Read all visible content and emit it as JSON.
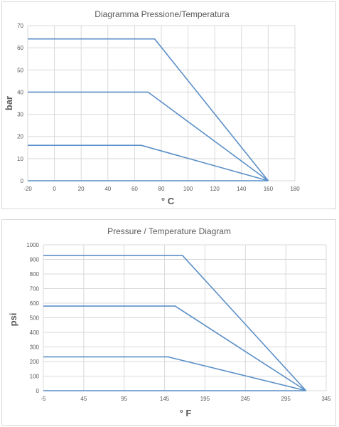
{
  "chart_data": [
    {
      "type": "line",
      "title": "Diagramma Pressione/Temperatura",
      "xlabel": "° C",
      "ylabel": "bar",
      "xlim": [
        -20,
        180
      ],
      "ylim": [
        0,
        70
      ],
      "xticks": [
        -20,
        0,
        20,
        40,
        60,
        80,
        100,
        120,
        140,
        160,
        180
      ],
      "yticks": [
        0,
        10,
        20,
        30,
        40,
        50,
        60,
        70
      ],
      "grid": true,
      "series": [
        {
          "x": [
            -20,
            75,
            160
          ],
          "y": [
            64,
            64,
            0
          ]
        },
        {
          "x": [
            -20,
            70,
            160
          ],
          "y": [
            40,
            40,
            0
          ]
        },
        {
          "x": [
            -20,
            65,
            160
          ],
          "y": [
            16,
            16,
            0
          ]
        },
        {
          "x": [
            -20,
            160
          ],
          "y": [
            0,
            0
          ]
        }
      ],
      "color": "#5b8fc7"
    },
    {
      "type": "line",
      "title": "Pressure / Temperature Diagram",
      "xlabel": "° F",
      "ylabel": "psi",
      "xlim": [
        -5,
        345
      ],
      "ylim": [
        0,
        1000
      ],
      "xticks": [
        -5,
        45,
        95,
        145,
        195,
        245,
        295,
        345
      ],
      "yticks": [
        0,
        100,
        200,
        300,
        400,
        500,
        600,
        700,
        800,
        900,
        1000
      ],
      "grid": true,
      "series": [
        {
          "x": [
            -5,
            167,
            320
          ],
          "y": [
            928,
            928,
            0
          ]
        },
        {
          "x": [
            -5,
            158,
            320
          ],
          "y": [
            580,
            580,
            0
          ]
        },
        {
          "x": [
            -5,
            149,
            320
          ],
          "y": [
            232,
            232,
            0
          ]
        },
        {
          "x": [
            -5,
            320
          ],
          "y": [
            0,
            0
          ]
        }
      ],
      "color": "#5b8fc7"
    }
  ]
}
